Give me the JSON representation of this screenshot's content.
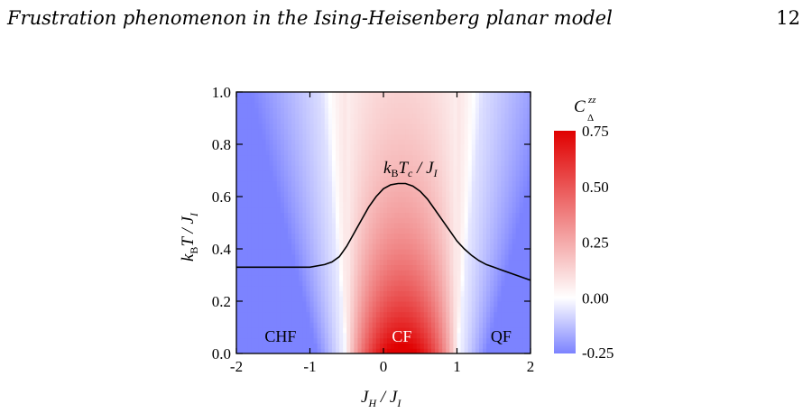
{
  "page_header": {
    "title": "Frustration phenomenon in the Ising-Heisenberg planar model",
    "page_number": "12"
  },
  "chart_data": {
    "type": "heatmap",
    "title": "",
    "xlabel": "J_H / J_I",
    "ylabel": "k_B T / J_I",
    "xlim": [
      -2,
      2
    ],
    "ylim": [
      0,
      1.0
    ],
    "x_ticks": [
      "-2",
      "-1",
      "0",
      "1",
      "2"
    ],
    "y_ticks": [
      "0.0",
      "0.2",
      "0.4",
      "0.6",
      "0.8",
      "1.0"
    ],
    "colorbar": {
      "label": "C_Δ^zz",
      "range": [
        -0.25,
        0.75
      ],
      "ticks": [
        "0.75",
        "0.50",
        "0.25",
        "0.00",
        "-0.25"
      ],
      "low_color": "#7c83ff",
      "mid_color": "#ffffff",
      "high_color": "#e00000"
    },
    "critical_curve": {
      "label": "k_B T_c / J_I",
      "x": [
        -2.0,
        -1.0,
        -0.8,
        -0.7,
        -0.6,
        -0.5,
        -0.4,
        -0.3,
        -0.2,
        -0.1,
        0.0,
        0.1,
        0.2,
        0.3,
        0.4,
        0.5,
        0.6,
        0.7,
        0.8,
        0.9,
        1.0,
        1.1,
        1.2,
        1.3,
        1.4,
        1.5,
        1.6,
        1.7,
        1.8,
        1.9,
        2.0
      ],
      "y": [
        0.33,
        0.33,
        0.34,
        0.35,
        0.37,
        0.41,
        0.46,
        0.51,
        0.56,
        0.6,
        0.63,
        0.645,
        0.65,
        0.65,
        0.64,
        0.62,
        0.59,
        0.55,
        0.51,
        0.47,
        0.43,
        0.4,
        0.375,
        0.355,
        0.34,
        0.33,
        0.32,
        0.31,
        0.3,
        0.29,
        0.28
      ]
    },
    "regions": [
      {
        "label": "CHF",
        "x": -1.4,
        "y": 0.065
      },
      {
        "label": "CF",
        "x": 0.25,
        "y": 0.065
      },
      {
        "label": "QF",
        "x": 1.6,
        "y": 0.065
      }
    ]
  }
}
